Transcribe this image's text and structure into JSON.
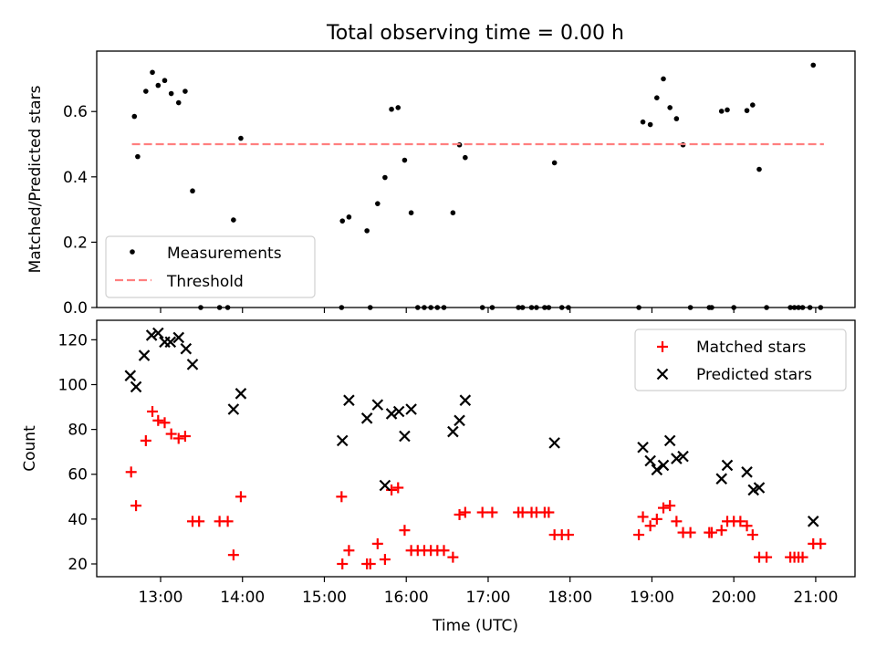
{
  "title": "Total observing time = 0.00 h",
  "x_axis": {
    "label": "Time (UTC)",
    "ticks": [
      {
        "value": 13.0,
        "label": "13:00"
      },
      {
        "value": 14.0,
        "label": "14:00"
      },
      {
        "value": 15.0,
        "label": "15:00"
      },
      {
        "value": 16.0,
        "label": "16:00"
      },
      {
        "value": 17.0,
        "label": "17:00"
      },
      {
        "value": 18.0,
        "label": "18:00"
      },
      {
        "value": 19.0,
        "label": "19:00"
      },
      {
        "value": 20.0,
        "label": "20:00"
      },
      {
        "value": 21.0,
        "label": "21:00"
      }
    ],
    "xlim": [
      12.22,
      21.48
    ]
  },
  "colors": {
    "measurements": "#000000",
    "threshold": "#ff7f7f",
    "matched": "#ff0000",
    "predicted": "#000000"
  },
  "chart_data": [
    {
      "type": "scatter",
      "title": "Total observing time = 0.00 h",
      "xlabel": "",
      "ylabel": "Matched/Predicted stars",
      "ylim": [
        0.0,
        0.785
      ],
      "yticks": [
        0.0,
        0.2,
        0.4,
        0.6
      ],
      "ytick_labels": [
        "0.0",
        "0.2",
        "0.4",
        "0.6"
      ],
      "grid": false,
      "legend": {
        "placement": "lower-left",
        "entries": [
          "Measurements",
          "Threshold"
        ]
      },
      "series": [
        {
          "name": "Measurements",
          "marker": "dot",
          "points": [
            [
              12.68,
              0.585
            ],
            [
              12.72,
              0.462
            ],
            [
              12.82,
              0.662
            ],
            [
              12.9,
              0.72
            ],
            [
              12.97,
              0.68
            ],
            [
              13.05,
              0.695
            ],
            [
              13.13,
              0.655
            ],
            [
              13.22,
              0.627
            ],
            [
              13.3,
              0.662
            ],
            [
              13.39,
              0.357
            ],
            [
              13.49,
              0.0
            ],
            [
              13.72,
              0.0
            ],
            [
              13.82,
              0.0
            ],
            [
              13.89,
              0.268
            ],
            [
              13.98,
              0.518
            ],
            [
              15.21,
              0.0
            ],
            [
              15.22,
              0.265
            ],
            [
              15.3,
              0.277
            ],
            [
              15.52,
              0.235
            ],
            [
              15.56,
              0.0
            ],
            [
              15.65,
              0.318
            ],
            [
              15.74,
              0.398
            ],
            [
              15.82,
              0.607
            ],
            [
              15.9,
              0.612
            ],
            [
              15.98,
              0.451
            ],
            [
              16.06,
              0.29
            ],
            [
              16.14,
              0.0
            ],
            [
              16.22,
              0.0
            ],
            [
              16.3,
              0.0
            ],
            [
              16.38,
              0.0
            ],
            [
              16.46,
              0.0
            ],
            [
              16.57,
              0.29
            ],
            [
              16.65,
              0.498
            ],
            [
              16.72,
              0.459
            ],
            [
              16.93,
              0.0
            ],
            [
              17.05,
              0.0
            ],
            [
              17.37,
              0.0
            ],
            [
              17.42,
              0.0
            ],
            [
              17.53,
              0.0
            ],
            [
              17.59,
              0.0
            ],
            [
              17.69,
              0.0
            ],
            [
              17.74,
              0.0
            ],
            [
              17.81,
              0.443
            ],
            [
              17.9,
              0.0
            ],
            [
              17.98,
              0.0
            ],
            [
              18.84,
              0.0
            ],
            [
              18.89,
              0.568
            ],
            [
              18.98,
              0.56
            ],
            [
              19.06,
              0.642
            ],
            [
              19.14,
              0.7
            ],
            [
              19.22,
              0.612
            ],
            [
              19.3,
              0.578
            ],
            [
              19.38,
              0.498
            ],
            [
              19.47,
              0.0
            ],
            [
              19.7,
              0.0
            ],
            [
              19.73,
              0.0
            ],
            [
              19.85,
              0.601
            ],
            [
              19.92,
              0.605
            ],
            [
              20.0,
              0.0
            ],
            [
              20.16,
              0.603
            ],
            [
              20.23,
              0.62
            ],
            [
              20.31,
              0.423
            ],
            [
              20.4,
              0.0
            ],
            [
              20.69,
              0.0
            ],
            [
              20.74,
              0.0
            ],
            [
              20.79,
              0.0
            ],
            [
              20.84,
              0.0
            ],
            [
              20.93,
              0.0
            ],
            [
              20.97,
              0.742
            ],
            [
              21.06,
              0.0
            ]
          ]
        },
        {
          "name": "Threshold",
          "style": "dashed-line",
          "points": [
            [
              12.65,
              0.5
            ],
            [
              21.1,
              0.5
            ]
          ]
        }
      ]
    },
    {
      "type": "scatter",
      "xlabel": "Time (UTC)",
      "ylabel": "Count",
      "ylim": [
        14.3,
        128.7
      ],
      "yticks": [
        20,
        40,
        60,
        80,
        100,
        120
      ],
      "ytick_labels": [
        "20",
        "40",
        "60",
        "80",
        "100",
        "120"
      ],
      "grid": false,
      "legend": {
        "placement": "top-right",
        "entries": [
          "Matched stars",
          "Predicted stars"
        ]
      },
      "series": [
        {
          "name": "Matched stars",
          "marker": "plus",
          "points": [
            [
              12.64,
              61
            ],
            [
              12.7,
              46
            ],
            [
              12.82,
              75
            ],
            [
              12.9,
              88
            ],
            [
              12.97,
              84
            ],
            [
              13.05,
              83
            ],
            [
              13.13,
              78
            ],
            [
              13.22,
              76
            ],
            [
              13.3,
              77
            ],
            [
              13.39,
              39
            ],
            [
              13.47,
              39
            ],
            [
              13.72,
              39
            ],
            [
              13.82,
              39
            ],
            [
              13.89,
              24
            ],
            [
              13.98,
              50
            ],
            [
              15.21,
              50
            ],
            [
              15.22,
              20
            ],
            [
              15.3,
              26
            ],
            [
              15.52,
              20
            ],
            [
              15.56,
              20
            ],
            [
              15.65,
              29
            ],
            [
              15.74,
              22
            ],
            [
              15.82,
              53
            ],
            [
              15.9,
              54
            ],
            [
              15.98,
              35
            ],
            [
              16.06,
              26
            ],
            [
              16.14,
              26
            ],
            [
              16.22,
              26
            ],
            [
              16.3,
              26
            ],
            [
              16.38,
              26
            ],
            [
              16.46,
              26
            ],
            [
              16.57,
              23
            ],
            [
              16.65,
              42
            ],
            [
              16.72,
              43
            ],
            [
              16.93,
              43
            ],
            [
              17.05,
              43
            ],
            [
              17.37,
              43
            ],
            [
              17.42,
              43
            ],
            [
              17.53,
              43
            ],
            [
              17.59,
              43
            ],
            [
              17.69,
              43
            ],
            [
              17.74,
              43
            ],
            [
              17.81,
              33
            ],
            [
              17.9,
              33
            ],
            [
              17.98,
              33
            ],
            [
              18.84,
              33
            ],
            [
              18.89,
              41
            ],
            [
              18.98,
              37
            ],
            [
              19.06,
              40
            ],
            [
              19.14,
              45
            ],
            [
              19.22,
              46
            ],
            [
              19.3,
              39
            ],
            [
              19.38,
              34
            ],
            [
              19.47,
              34
            ],
            [
              19.7,
              34
            ],
            [
              19.73,
              34
            ],
            [
              19.85,
              35
            ],
            [
              19.92,
              39
            ],
            [
              20.0,
              39
            ],
            [
              20.08,
              39
            ],
            [
              20.16,
              37
            ],
            [
              20.23,
              33
            ],
            [
              20.31,
              23
            ],
            [
              20.4,
              23
            ],
            [
              20.69,
              23
            ],
            [
              20.74,
              23
            ],
            [
              20.79,
              23
            ],
            [
              20.84,
              23
            ],
            [
              20.97,
              29
            ],
            [
              21.06,
              29
            ]
          ]
        },
        {
          "name": "Predicted stars",
          "marker": "x",
          "points": [
            [
              12.63,
              104
            ],
            [
              12.7,
              99
            ],
            [
              12.8,
              113
            ],
            [
              12.89,
              122
            ],
            [
              12.97,
              123
            ],
            [
              13.05,
              119
            ],
            [
              13.12,
              119
            ],
            [
              13.22,
              121
            ],
            [
              13.31,
              116
            ],
            [
              13.39,
              109
            ],
            [
              13.89,
              89
            ],
            [
              13.98,
              96
            ],
            [
              15.22,
              75
            ],
            [
              15.3,
              93
            ],
            [
              15.52,
              85
            ],
            [
              15.65,
              91
            ],
            [
              15.74,
              55
            ],
            [
              15.82,
              87
            ],
            [
              15.91,
              88
            ],
            [
              15.98,
              77
            ],
            [
              16.06,
              89
            ],
            [
              16.57,
              79
            ],
            [
              16.65,
              84
            ],
            [
              16.72,
              93
            ],
            [
              17.81,
              74
            ],
            [
              18.89,
              72
            ],
            [
              18.98,
              66
            ],
            [
              19.06,
              62
            ],
            [
              19.14,
              64
            ],
            [
              19.22,
              75
            ],
            [
              19.3,
              67
            ],
            [
              19.38,
              68
            ],
            [
              19.85,
              58
            ],
            [
              19.92,
              64
            ],
            [
              20.16,
              61
            ],
            [
              20.24,
              53
            ],
            [
              20.31,
              54
            ],
            [
              20.97,
              39
            ]
          ]
        }
      ]
    }
  ]
}
